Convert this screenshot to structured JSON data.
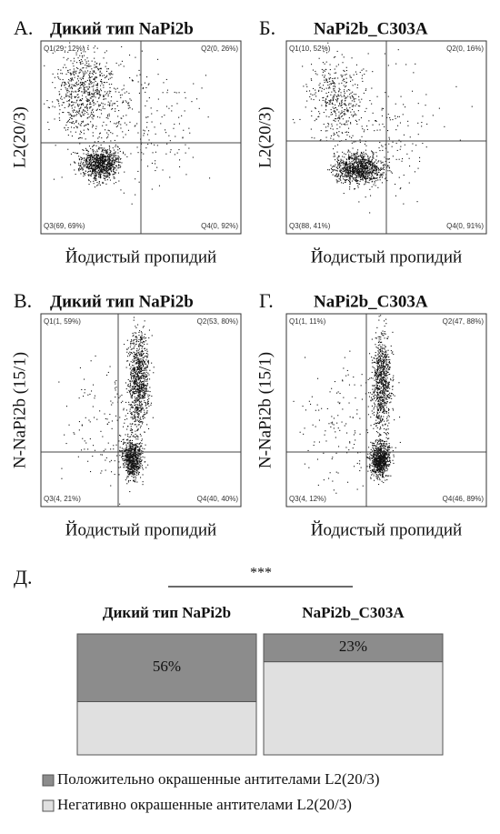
{
  "panels": [
    {
      "letter": "А.",
      "title": "Дикий тип NaPi2b",
      "y_label": "L2(20/3)",
      "x_label": "Йодистый пропидий",
      "quadrants": [
        "Q1(29, 12%)",
        "Q2(0, 26%)",
        "Q3(69, 69%)",
        "Q4(0, 92%)"
      ]
    },
    {
      "letter": "Б.",
      "title": "NaPi2b_C303A",
      "y_label": "L2(20/3)",
      "x_label": "Йодистый пропидий",
      "quadrants": [
        "Q1(10, 52%)",
        "Q2(0, 16%)",
        "Q3(88, 41%)",
        "Q4(0, 91%)"
      ]
    },
    {
      "letter": "В.",
      "title": "Дикий тип NaPi2b",
      "y_label": "N-NaPi2b (15/1)",
      "x_label": "Йодистый пропидий",
      "quadrants": [
        "Q1(1, 59%)",
        "Q2(53, 80%)",
        "Q3(4, 21%)",
        "Q4(40, 40%)"
      ]
    },
    {
      "letter": "Г.",
      "title": "NaPi2b_C303A",
      "y_label": "N-NaPi2b (15/1)",
      "x_label": "Йодистый пропидий",
      "quadrants": [
        "Q1(1, 11%)",
        "Q2(47, 88%)",
        "Q3(4, 12%)",
        "Q4(46, 89%)"
      ]
    }
  ],
  "chart_data": {
    "type": "stacked_bar",
    "panel_letter": "Д.",
    "significance": "***",
    "categories": [
      "Дикий тип NaPi2b",
      "NaPi2b_C303A"
    ],
    "series": [
      {
        "name": "Положительно окрашенные антителами L2(20/3)",
        "color": "#8c8c8c",
        "values": [
          56,
          23
        ],
        "value_labels": [
          "56%",
          "23%"
        ]
      },
      {
        "name": "Негативно окрашенные антителами L2(20/3)",
        "color": "#e0e0e0",
        "values": [
          44,
          77
        ]
      }
    ],
    "ylim": [
      0,
      100
    ]
  }
}
